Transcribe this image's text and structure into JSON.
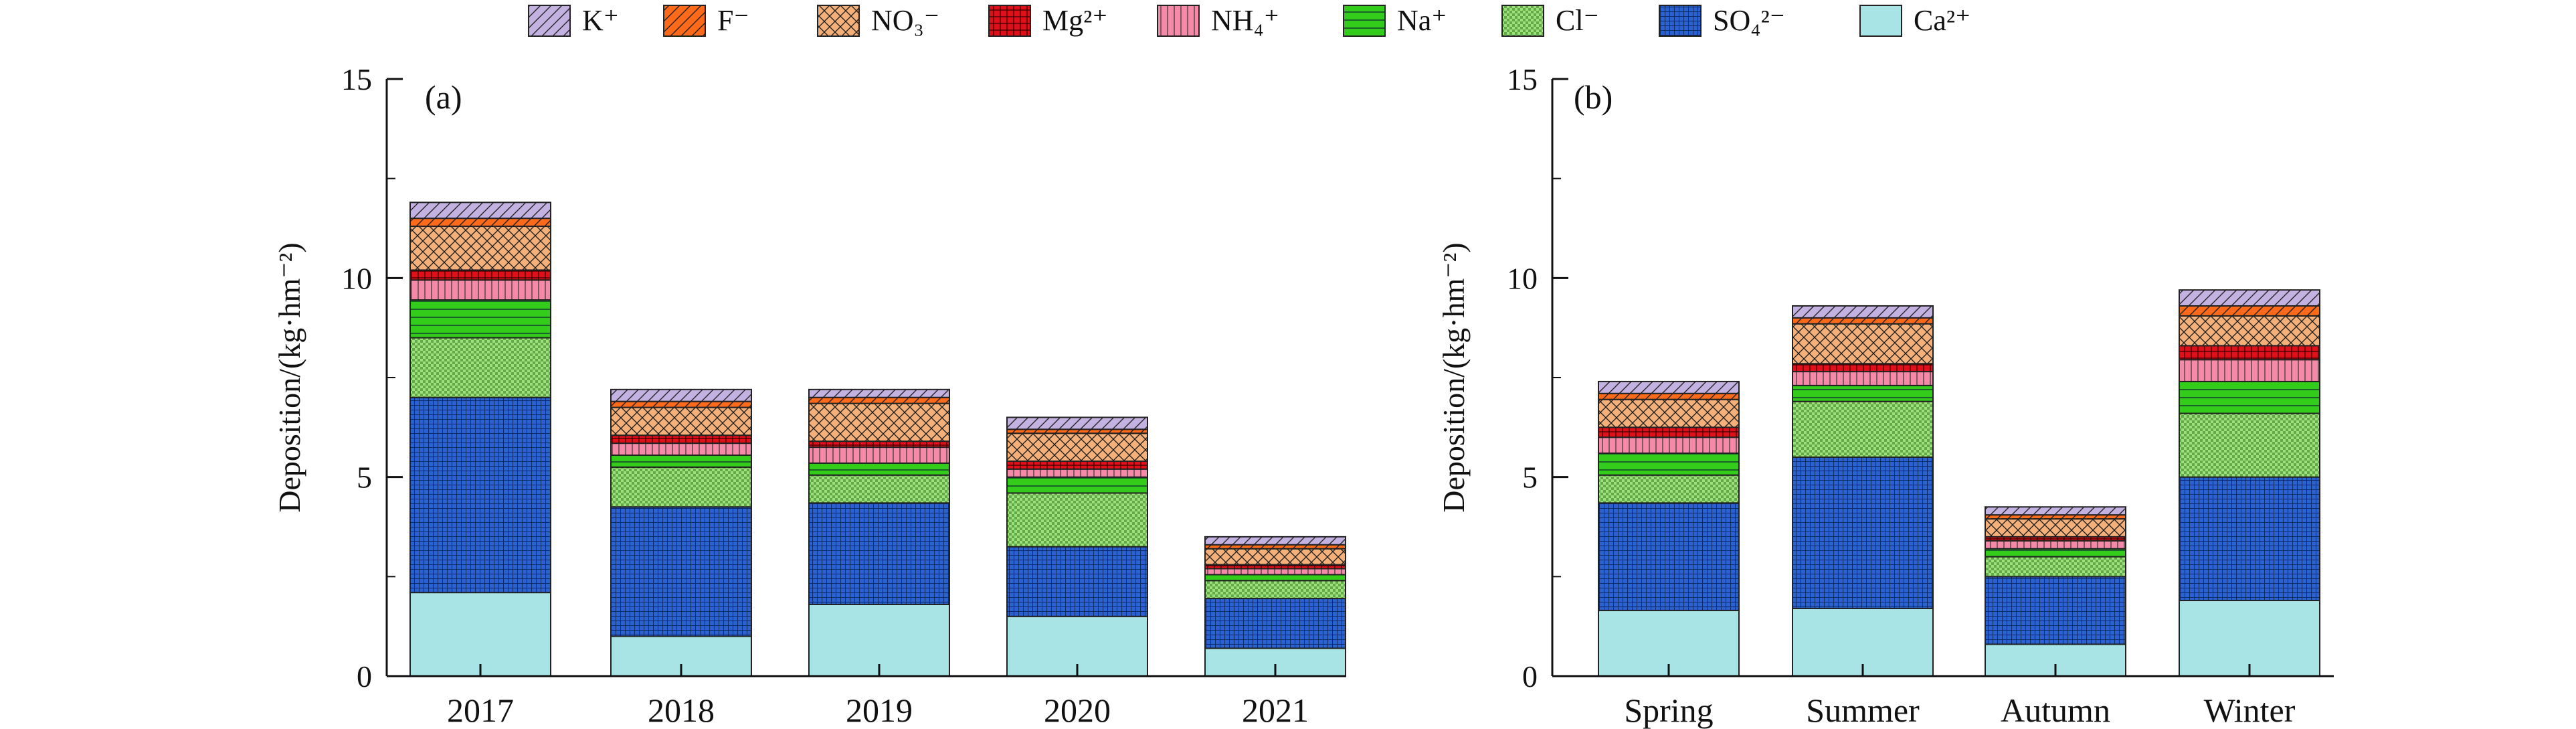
{
  "legend": {
    "items": [
      {
        "key": "K",
        "label": "K⁺",
        "color": "#c3b1e1",
        "pattern": "diag"
      },
      {
        "key": "F",
        "label": "F⁻",
        "color": "#ff6a1a",
        "pattern": "diag"
      },
      {
        "key": "NO3",
        "label": "NO₃⁻",
        "color": "#f5b07a",
        "pattern": "cross"
      },
      {
        "key": "Mg",
        "label": "Mg²⁺",
        "color": "#e0101a",
        "pattern": "grid"
      },
      {
        "key": "NH4",
        "label": "NH₄⁺",
        "color": "#f58aa8",
        "pattern": "vlines"
      },
      {
        "key": "Na",
        "label": "Na⁺",
        "color": "#33cc1a",
        "pattern": "hlines"
      },
      {
        "key": "Cl",
        "label": "Cl⁻",
        "color": "#9ee07a",
        "pattern": "check"
      },
      {
        "key": "SO4",
        "label": "SO₄²⁻",
        "color": "#2a62cf",
        "pattern": "finegrid"
      },
      {
        "key": "Ca",
        "label": "Ca²⁺",
        "color": "#a8e4e6",
        "pattern": "none"
      }
    ]
  },
  "chart_data": [
    {
      "type": "bar",
      "stacked": true,
      "panel_label": "(a)",
      "ylabel": "Deposition/(kg·hm⁻²)",
      "ylim": [
        0,
        15
      ],
      "yticks": [
        "0",
        "5",
        "10",
        "15"
      ],
      "categories": [
        "2017",
        "2018",
        "2019",
        "2020",
        "2021"
      ],
      "series": [
        {
          "name": "Ca²⁺",
          "values": [
            2.1,
            1.0,
            1.8,
            1.5,
            0.7
          ]
        },
        {
          "name": "SO₄²⁻",
          "values": [
            4.9,
            3.25,
            2.55,
            1.75,
            1.25
          ]
        },
        {
          "name": "Cl⁻",
          "values": [
            1.5,
            1.0,
            0.7,
            1.35,
            0.45
          ]
        },
        {
          "name": "Na⁺",
          "values": [
            0.95,
            0.3,
            0.3,
            0.4,
            0.15
          ]
        },
        {
          "name": "NH₄⁺",
          "values": [
            0.5,
            0.3,
            0.4,
            0.2,
            0.15
          ]
        },
        {
          "name": "Mg²⁺",
          "values": [
            0.25,
            0.2,
            0.15,
            0.2,
            0.1
          ]
        },
        {
          "name": "NO₃⁻",
          "values": [
            1.1,
            0.7,
            0.95,
            0.7,
            0.4
          ]
        },
        {
          "name": "F⁻",
          "values": [
            0.2,
            0.15,
            0.15,
            0.1,
            0.1
          ]
        },
        {
          "name": "K⁺",
          "values": [
            0.4,
            0.3,
            0.2,
            0.3,
            0.2
          ]
        }
      ]
    },
    {
      "type": "bar",
      "stacked": true,
      "panel_label": "(b)",
      "ylabel": "Deposition/(kg·hm⁻²)",
      "ylim": [
        0,
        15
      ],
      "yticks": [
        "0",
        "5",
        "10",
        "15"
      ],
      "categories": [
        "Spring",
        "Summer",
        "Autumn",
        "Winter"
      ],
      "series": [
        {
          "name": "Ca²⁺",
          "values": [
            1.65,
            1.7,
            0.8,
            1.9
          ]
        },
        {
          "name": "SO₄²⁻",
          "values": [
            2.7,
            3.8,
            1.7,
            3.1
          ]
        },
        {
          "name": "Cl⁻",
          "values": [
            0.7,
            1.4,
            0.5,
            1.6
          ]
        },
        {
          "name": "Na⁺",
          "values": [
            0.55,
            0.4,
            0.2,
            0.8
          ]
        },
        {
          "name": "NH₄⁺",
          "values": [
            0.4,
            0.35,
            0.2,
            0.55
          ]
        },
        {
          "name": "Mg²⁺",
          "values": [
            0.25,
            0.2,
            0.1,
            0.35
          ]
        },
        {
          "name": "NO₃⁻",
          "values": [
            0.7,
            1.0,
            0.45,
            0.75
          ]
        },
        {
          "name": "F⁻",
          "values": [
            0.15,
            0.15,
            0.1,
            0.25
          ]
        },
        {
          "name": "K⁺",
          "values": [
            0.3,
            0.3,
            0.2,
            0.4
          ]
        }
      ]
    }
  ]
}
